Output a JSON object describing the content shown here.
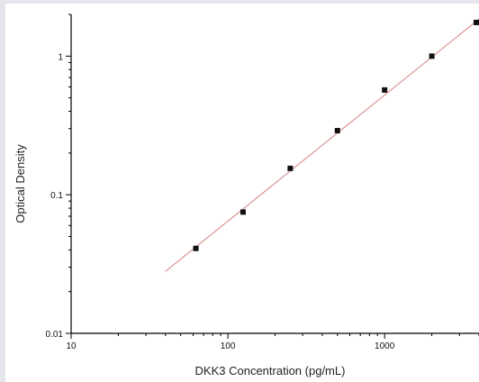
{
  "chart_data": {
    "type": "scatter",
    "title": "",
    "xlabel": "DKK3 Concentration (pg/mL)",
    "ylabel": "Optical Density",
    "x_scale": "log",
    "y_scale": "log",
    "xlim": [
      10,
      4000
    ],
    "ylim": [
      0.01,
      2
    ],
    "x_ticks": [
      {
        "value": 10,
        "label": "10"
      },
      {
        "value": 100,
        "label": "100"
      },
      {
        "value": 1000,
        "label": "1000"
      }
    ],
    "y_ticks": [
      {
        "value": 0.01,
        "label": "0.01"
      },
      {
        "value": 0.1,
        "label": "0.1"
      },
      {
        "value": 1,
        "label": "1"
      }
    ],
    "grid": false,
    "legend": "none",
    "series": [
      {
        "points": [
          {
            "x": 62.5,
            "y": 0.041
          },
          {
            "x": 125,
            "y": 0.075
          },
          {
            "x": 250,
            "y": 0.155
          },
          {
            "x": 500,
            "y": 0.29
          },
          {
            "x": 1000,
            "y": 0.57
          },
          {
            "x": 2000,
            "y": 1.0
          },
          {
            "x": 4000,
            "y": 1.75
          }
        ]
      }
    ],
    "fit_line": {
      "x": [
        40,
        4000
      ],
      "y": [
        0.028,
        1.85
      ]
    },
    "colors": {
      "points": "#111111",
      "fit_line": "#d98c8c",
      "axes": "#000000"
    }
  }
}
